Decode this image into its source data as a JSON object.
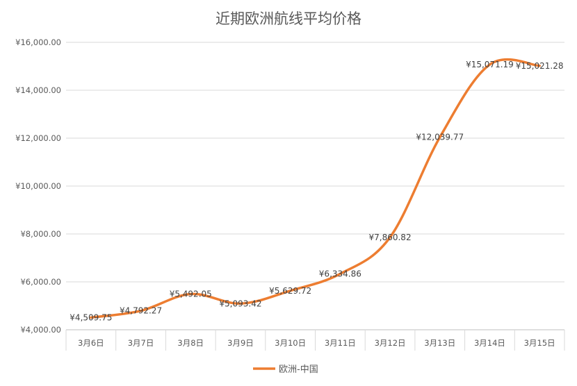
{
  "chart_data": {
    "type": "line",
    "title": "近期欧洲航线平均价格",
    "categories": [
      "3月6日",
      "3月7日",
      "3月8日",
      "3月9日",
      "3月10日",
      "3月11日",
      "3月12日",
      "3月13日",
      "3月14日",
      "3月15日"
    ],
    "series": [
      {
        "name": "欧洲-中国",
        "color": "#ED7D31",
        "values": [
          4509.75,
          4792.27,
          5492.05,
          5093.42,
          5629.72,
          6334.86,
          7860.82,
          12039.77,
          15071.19,
          15021.28
        ],
        "labels": [
          "¥4,509.75",
          "¥4,792.27",
          "¥5,492.05",
          "¥5,093.42",
          "¥5,629.72",
          "¥6,334.86",
          "¥7,860.82",
          "¥12,039.77",
          "¥15,071.19",
          "¥15,021.28"
        ]
      }
    ],
    "ylim": [
      4000,
      16000
    ],
    "yticks": [
      4000,
      6000,
      8000,
      10000,
      12000,
      14000,
      16000
    ],
    "ytick_labels": [
      "¥4,000.00",
      "¥6,000.00",
      "¥8,000.00",
      "¥10,000.00",
      "¥12,000.00",
      "¥14,000.00",
      "¥16,000.00"
    ],
    "grid": true,
    "smooth": true,
    "legend": "bottom"
  }
}
